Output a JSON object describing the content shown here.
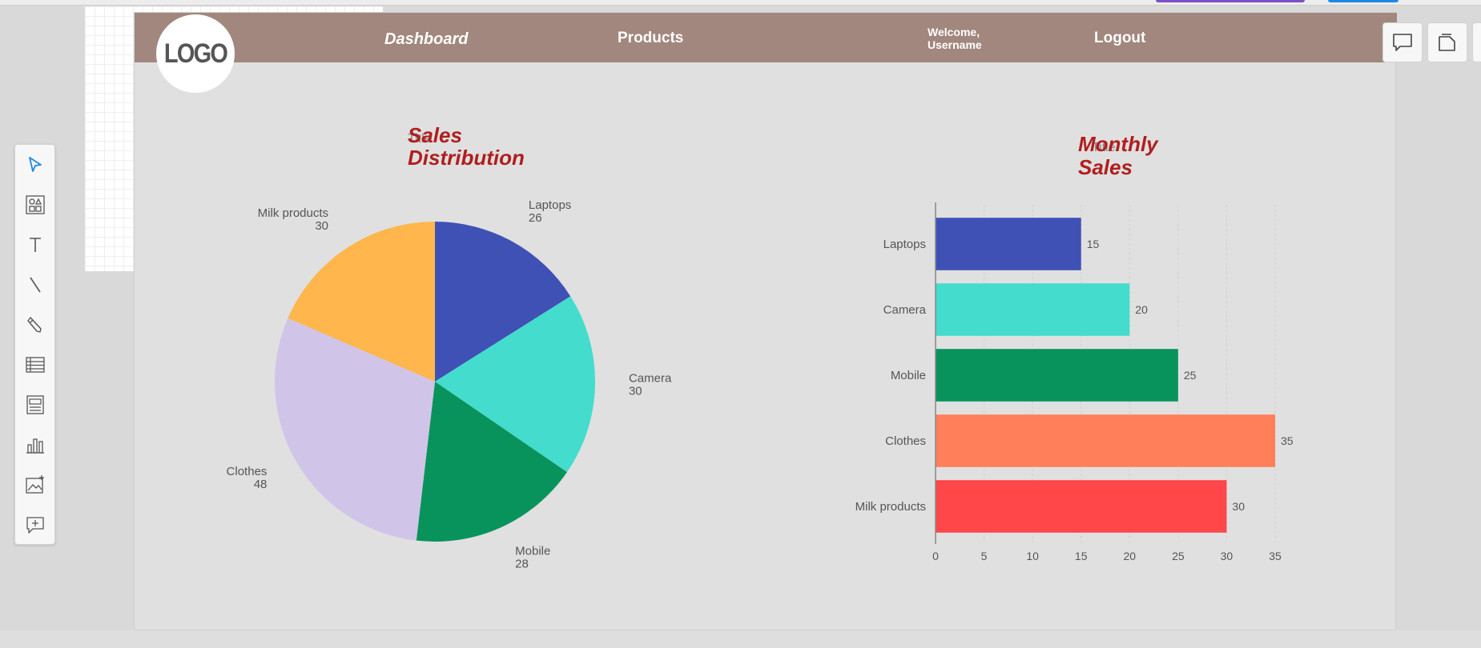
{
  "navbar": {
    "logo_text": "LOGO",
    "dashboard": "Dashboard",
    "products": "Products",
    "welcome_line1": "Welcome,",
    "welcome_line2": "Username",
    "logout": "Logout"
  },
  "toolbar": {
    "tools": [
      "select-tool",
      "components-tool",
      "text-tool",
      "line-tool",
      "pencil-tool",
      "table-tool",
      "form-tool",
      "chart-tool",
      "image-tool",
      "comment-tool"
    ]
  },
  "right_buttons": [
    "comment-icon",
    "pages-icon"
  ],
  "colors": {
    "navbar": "#a1877d",
    "title": "#b01e1e",
    "laptops": "#3f51b5",
    "camera": "#44dccc",
    "mobile": "#09935c",
    "clothes_pie": "#d1c4e9",
    "milk_pie": "#ffb74d",
    "clothes_bar": "#ff7f5a",
    "milk_bar": "#ff4649"
  },
  "chart_data": [
    {
      "type": "pie",
      "title_line1": "Sales",
      "title_line2": "Distribution",
      "overlay_text": "Title",
      "categories": [
        "Laptops",
        "Camera",
        "Mobile",
        "Clothes",
        "Milk products"
      ],
      "values": [
        26,
        30,
        28,
        48,
        30
      ],
      "colors": [
        "#3f51b5",
        "#44dccc",
        "#09935c",
        "#d1c4e9",
        "#ffb74d"
      ]
    },
    {
      "type": "bar",
      "orientation": "horizontal",
      "title_line1": "Monthly",
      "title_line2": "Sales",
      "overlay_text": "Title",
      "categories": [
        "Laptops",
        "Camera",
        "Mobile",
        "Clothes",
        "Milk products"
      ],
      "values": [
        15,
        20,
        25,
        35,
        30
      ],
      "colors": [
        "#3f51b5",
        "#44dccc",
        "#09935c",
        "#ff7f5a",
        "#ff4649"
      ],
      "xlim": [
        0,
        35
      ],
      "xticks": [
        0,
        5,
        10,
        15,
        20,
        25,
        30,
        35
      ],
      "grid": true
    }
  ]
}
